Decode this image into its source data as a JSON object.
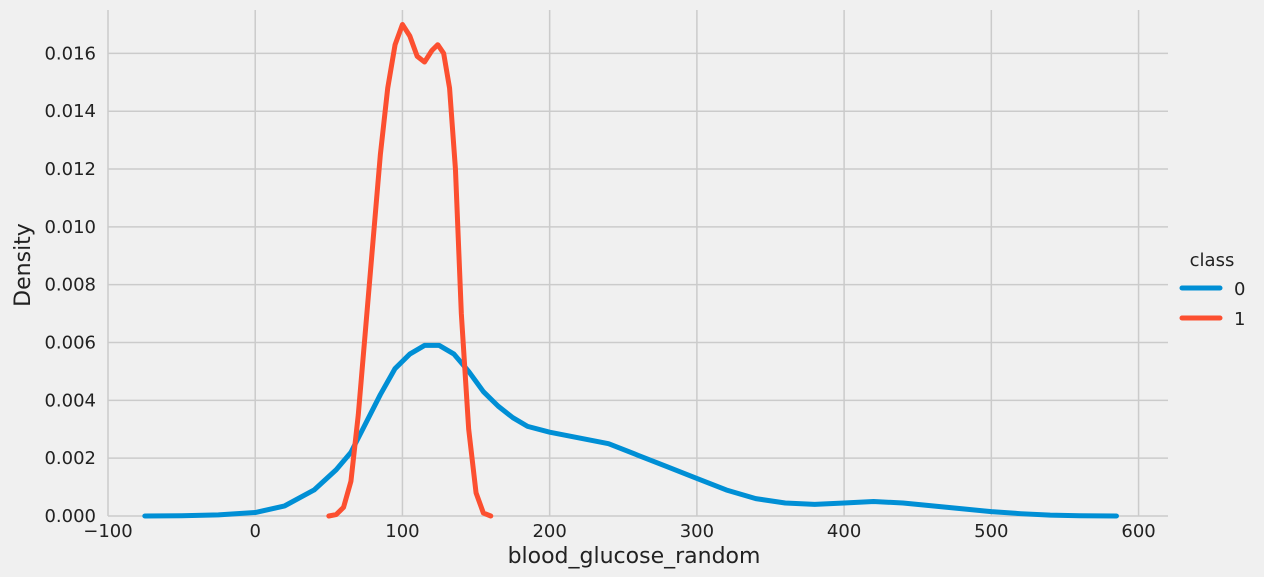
{
  "chart_data": {
    "type": "line",
    "xlabel": "blood_glucose_random",
    "ylabel": "Density",
    "xlim": [
      -100,
      620
    ],
    "ylim": [
      0,
      0.0175
    ],
    "x_ticks": [
      -100,
      0,
      100,
      200,
      300,
      400,
      500,
      600
    ],
    "x_tick_labels": [
      "−100",
      "0",
      "100",
      "200",
      "300",
      "400",
      "500",
      "600"
    ],
    "y_ticks": [
      0,
      0.002,
      0.004,
      0.006,
      0.008,
      0.01,
      0.012,
      0.014,
      0.016
    ],
    "y_tick_labels": [
      "0.000",
      "0.002",
      "0.004",
      "0.006",
      "0.008",
      "0.010",
      "0.012",
      "0.014",
      "0.016"
    ],
    "grid": true,
    "legend": {
      "title": "class",
      "placement": "right"
    },
    "series": [
      {
        "name": "0",
        "color": "#008fd5",
        "points": [
          [
            -75,
            0.0
          ],
          [
            -50,
            1e-05
          ],
          [
            -25,
            4e-05
          ],
          [
            0,
            0.00012
          ],
          [
            20,
            0.00035
          ],
          [
            40,
            0.0009
          ],
          [
            55,
            0.0016
          ],
          [
            65,
            0.0022
          ],
          [
            75,
            0.0032
          ],
          [
            85,
            0.0042
          ],
          [
            95,
            0.0051
          ],
          [
            105,
            0.0056
          ],
          [
            115,
            0.0059
          ],
          [
            125,
            0.0059
          ],
          [
            135,
            0.0056
          ],
          [
            145,
            0.005
          ],
          [
            155,
            0.0043
          ],
          [
            165,
            0.0038
          ],
          [
            175,
            0.0034
          ],
          [
            185,
            0.0031
          ],
          [
            200,
            0.0029
          ],
          [
            220,
            0.0027
          ],
          [
            240,
            0.0025
          ],
          [
            260,
            0.0021
          ],
          [
            280,
            0.0017
          ],
          [
            300,
            0.0013
          ],
          [
            320,
            0.0009
          ],
          [
            340,
            0.0006
          ],
          [
            360,
            0.00045
          ],
          [
            380,
            0.0004
          ],
          [
            400,
            0.00045
          ],
          [
            420,
            0.0005
          ],
          [
            440,
            0.00045
          ],
          [
            460,
            0.00035
          ],
          [
            480,
            0.00025
          ],
          [
            500,
            0.00015
          ],
          [
            520,
            8e-05
          ],
          [
            540,
            3e-05
          ],
          [
            560,
            1e-05
          ],
          [
            585,
            0.0
          ]
        ]
      },
      {
        "name": "1",
        "color": "#fc4f30",
        "points": [
          [
            50,
            0.0
          ],
          [
            55,
            5e-05
          ],
          [
            60,
            0.0003
          ],
          [
            65,
            0.0012
          ],
          [
            70,
            0.0035
          ],
          [
            75,
            0.0065
          ],
          [
            80,
            0.0095
          ],
          [
            85,
            0.0125
          ],
          [
            90,
            0.0148
          ],
          [
            95,
            0.0163
          ],
          [
            100,
            0.017
          ],
          [
            105,
            0.0166
          ],
          [
            110,
            0.0159
          ],
          [
            115,
            0.0157
          ],
          [
            120,
            0.0161
          ],
          [
            124,
            0.0163
          ],
          [
            128,
            0.016
          ],
          [
            132,
            0.0148
          ],
          [
            136,
            0.012
          ],
          [
            140,
            0.007
          ],
          [
            145,
            0.003
          ],
          [
            150,
            0.0008
          ],
          [
            155,
            0.0001
          ],
          [
            160,
            0.0
          ]
        ]
      }
    ]
  }
}
